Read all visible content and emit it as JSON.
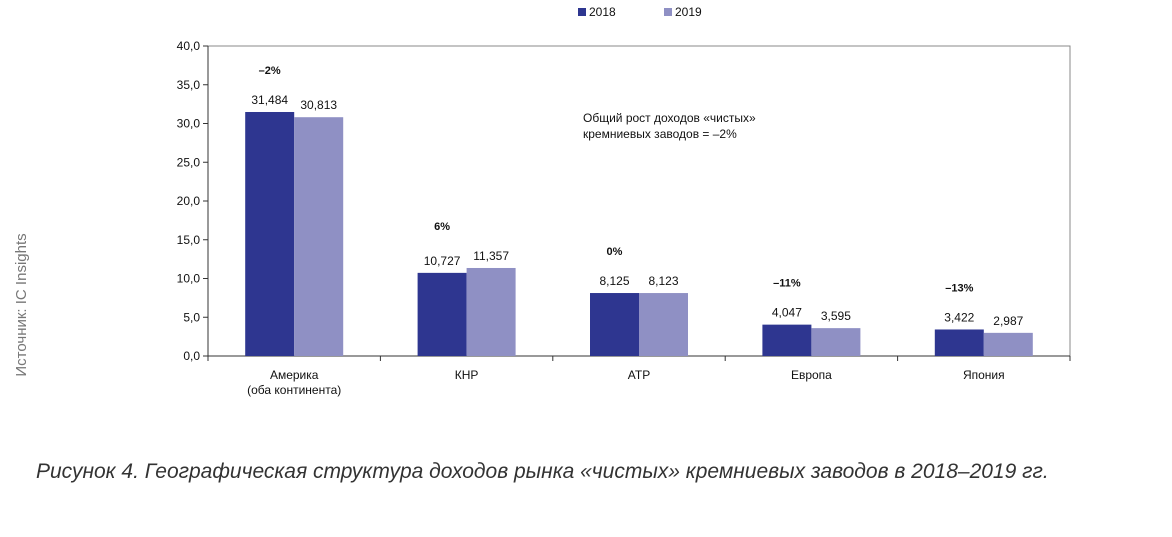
{
  "chart_data": {
    "type": "bar",
    "categories": [
      [
        "Америка",
        "(оба континента)"
      ],
      [
        "КНР"
      ],
      [
        "ATP"
      ],
      [
        "Европа"
      ],
      [
        "Япония"
      ]
    ],
    "series": [
      {
        "name": "2018",
        "values": [
          31.484,
          10.727,
          8.125,
          4.047,
          3.422
        ],
        "labels": [
          "31,484",
          "10,727",
          "8,125",
          "4,047",
          "3,422"
        ]
      },
      {
        "name": "2019",
        "values": [
          30.813,
          11.357,
          8.123,
          3.595,
          2.987
        ],
        "labels": [
          "30,813",
          "11,357",
          "8,123",
          "3,595",
          "2,987"
        ]
      }
    ],
    "growth_labels": [
      "–2%",
      "6%",
      "0%",
      "–11%",
      "–13%"
    ],
    "ylim": [
      0,
      40
    ],
    "yticks": [
      0,
      5,
      10,
      15,
      20,
      25,
      30,
      35,
      40
    ],
    "ytick_labels": [
      "0,0",
      "5,0",
      "10,0",
      "15,0",
      "20,0",
      "25,0",
      "30,0",
      "35,0",
      "40,0"
    ],
    "annotation": [
      "Общий рост доходов «чистых»",
      "кремниевых заводов = –2%"
    ],
    "legend_position": "top-center",
    "colors": {
      "2018": "#2e3690",
      "2019": "#8f90c4"
    },
    "grid": false
  },
  "source": "Источник: IC Insights",
  "caption": "Рисунок 4. Географическая структура доходов рынка «чистых» кремниевых заводов в 2018–2019 гг."
}
